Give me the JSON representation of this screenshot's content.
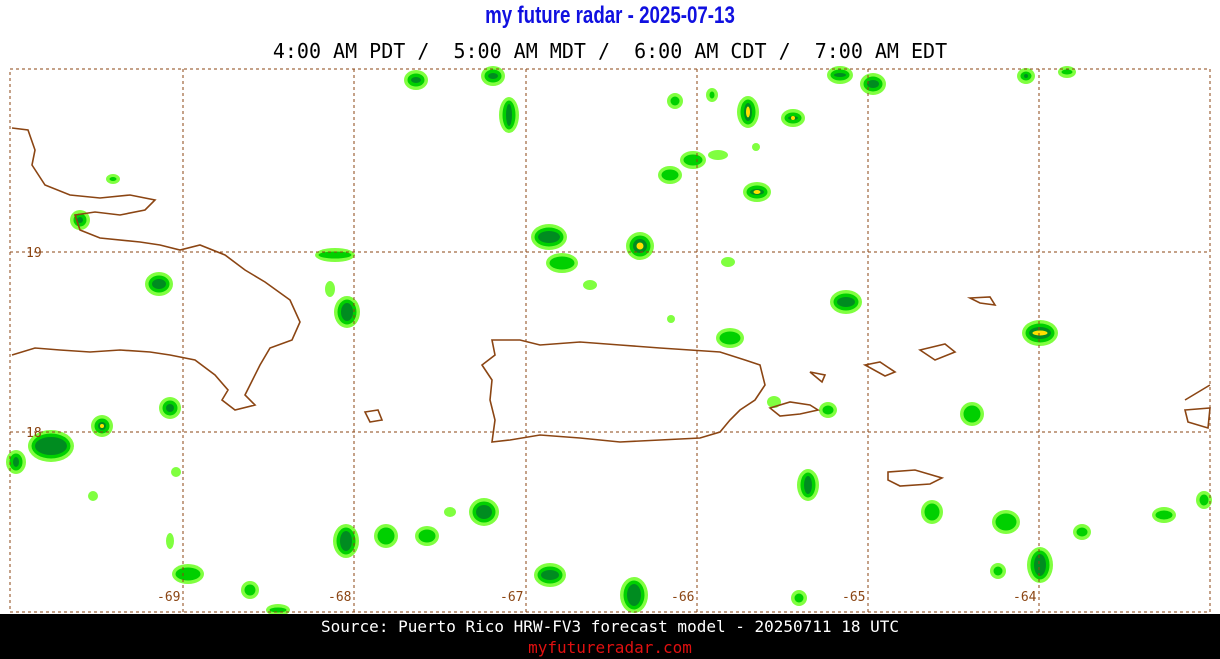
{
  "header": {
    "title": "my future radar - 2025-07-13",
    "times": "4:00 AM PDT /  5:00 AM MDT /  6:00 AM CDT /  7:00 AM EDT"
  },
  "map": {
    "lon_labels": [
      "-69",
      "-68",
      "-67",
      "-66",
      "-65",
      "-64"
    ],
    "lat_labels": [
      "19",
      "18"
    ]
  },
  "footer": {
    "source": "Source: Puerto Rico HRW-FV3 forecast model - 20250711 18 UTC",
    "site": "myfutureradar.com"
  }
}
